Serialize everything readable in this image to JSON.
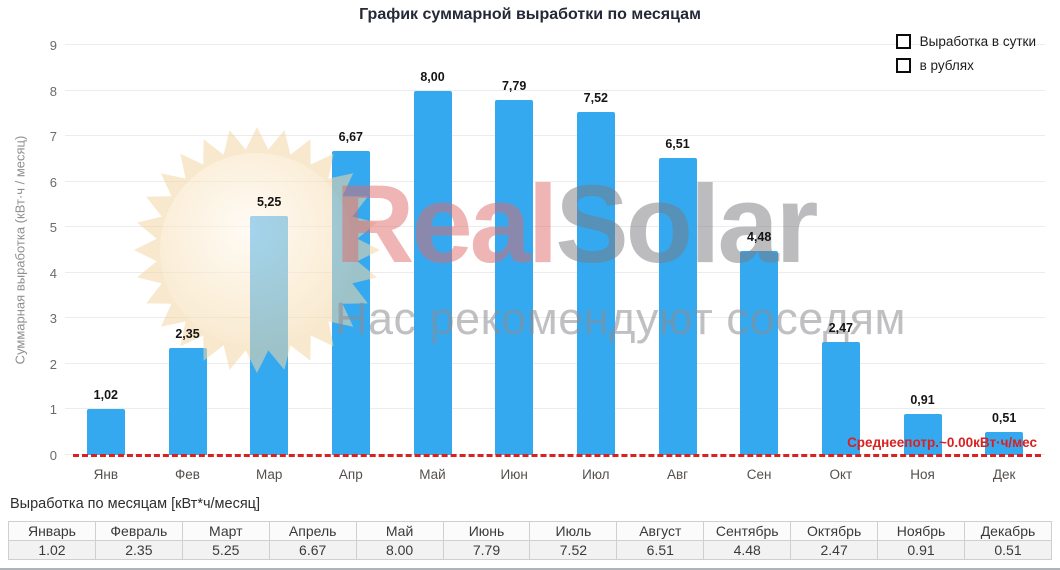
{
  "page": {
    "title": "График суммарной выработки по месяцам"
  },
  "legend": {
    "items": [
      {
        "label": "Выработка в сутки"
      },
      {
        "label": "в рублях"
      }
    ]
  },
  "chart_data": {
    "type": "bar",
    "title": "График суммарной выработки по месяцам",
    "categories": [
      "Янв",
      "Фев",
      "Мар",
      "Апр",
      "Май",
      "Июн",
      "Июл",
      "Авг",
      "Сен",
      "Окт",
      "Ноя",
      "Дек"
    ],
    "values": [
      1.02,
      2.35,
      5.25,
      6.67,
      8.0,
      7.79,
      7.52,
      6.51,
      4.48,
      2.47,
      0.91,
      0.51
    ],
    "bar_value_labels": [
      "1,02",
      "2,35",
      "5,25",
      "6,67",
      "8,00",
      "7,79",
      "7,52",
      "6,51",
      "4,48",
      "2,47",
      "0,91",
      "0,51"
    ],
    "xlabel": "",
    "ylabel": "Суммарная выработка (кВт·ч / месяц)",
    "ylim": [
      0,
      9
    ],
    "yticks": [
      0,
      1,
      2,
      3,
      4,
      5,
      6,
      7,
      8,
      9
    ],
    "grid": true,
    "legend_entries": [
      "Выработка в сутки",
      "в рублях"
    ],
    "legend_position": "top-right",
    "bar_color": "#35A9F0",
    "baseline_annotation": {
      "text": "Среднеепотр.~0.00кВт·ч/мес",
      "y_value": 0,
      "line_style": "dashed",
      "color": "#D92121"
    }
  },
  "watermark": {
    "brand_part1": "Real",
    "brand_part2": "Solar",
    "tagline": "Нас рекомендуют соседям"
  },
  "summary": {
    "caption": "Выработка по месяцам [кВт*ч/месяц]",
    "table": {
      "headers": [
        "Январь",
        "Февраль",
        "Март",
        "Апрель",
        "Май",
        "Июнь",
        "Июль",
        "Август",
        "Сентябрь",
        "Октябрь",
        "Ноябрь",
        "Декабрь"
      ],
      "values": [
        "1.02",
        "2.35",
        "5.25",
        "6.67",
        "8.00",
        "7.79",
        "7.52",
        "6.51",
        "4.48",
        "2.47",
        "0.91",
        "0.51"
      ]
    }
  },
  "colors": {
    "bar": "#35A9F0",
    "annotation_red": "#D92121",
    "title_text": "#252837",
    "axis_text": "#666666",
    "gridline": "#ECECEC",
    "sun": "#F3D7A6",
    "sun_core": "#FFF6E6"
  }
}
